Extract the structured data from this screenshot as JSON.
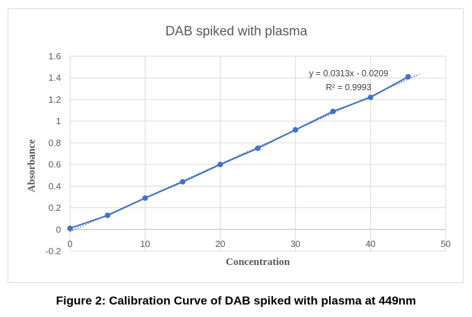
{
  "chart_data": {
    "type": "scatter",
    "title": "DAB spiked with plasma",
    "xlabel": "Concentration",
    "ylabel": "Absorbance",
    "xlim": [
      0,
      50
    ],
    "ylim": [
      -0.2,
      1.6
    ],
    "xticks": [
      "0",
      "10",
      "20",
      "30",
      "40",
      "50"
    ],
    "yticks": [
      "-0.2",
      "0",
      "0.2",
      "0.4",
      "0.6",
      "0.8",
      "1",
      "1.2",
      "1.4",
      "1.6"
    ],
    "grid": true,
    "series": [
      {
        "x": [
          0,
          5,
          10,
          15,
          20,
          25,
          30,
          35,
          40,
          45
        ],
        "y": [
          0.01,
          0.13,
          0.29,
          0.44,
          0.6,
          0.75,
          0.92,
          1.09,
          1.22,
          1.41
        ],
        "color": "#4472c4"
      }
    ],
    "trendline": {
      "slope": 0.0313,
      "intercept": -0.0209,
      "equation": "y = 0.0313x - 0.0209",
      "r2": "R² = 0.9993",
      "style": "dotted",
      "color": "#4472c4"
    }
  },
  "caption": "Figure 2: Calibration Curve of DAB spiked with plasma at 449nm"
}
